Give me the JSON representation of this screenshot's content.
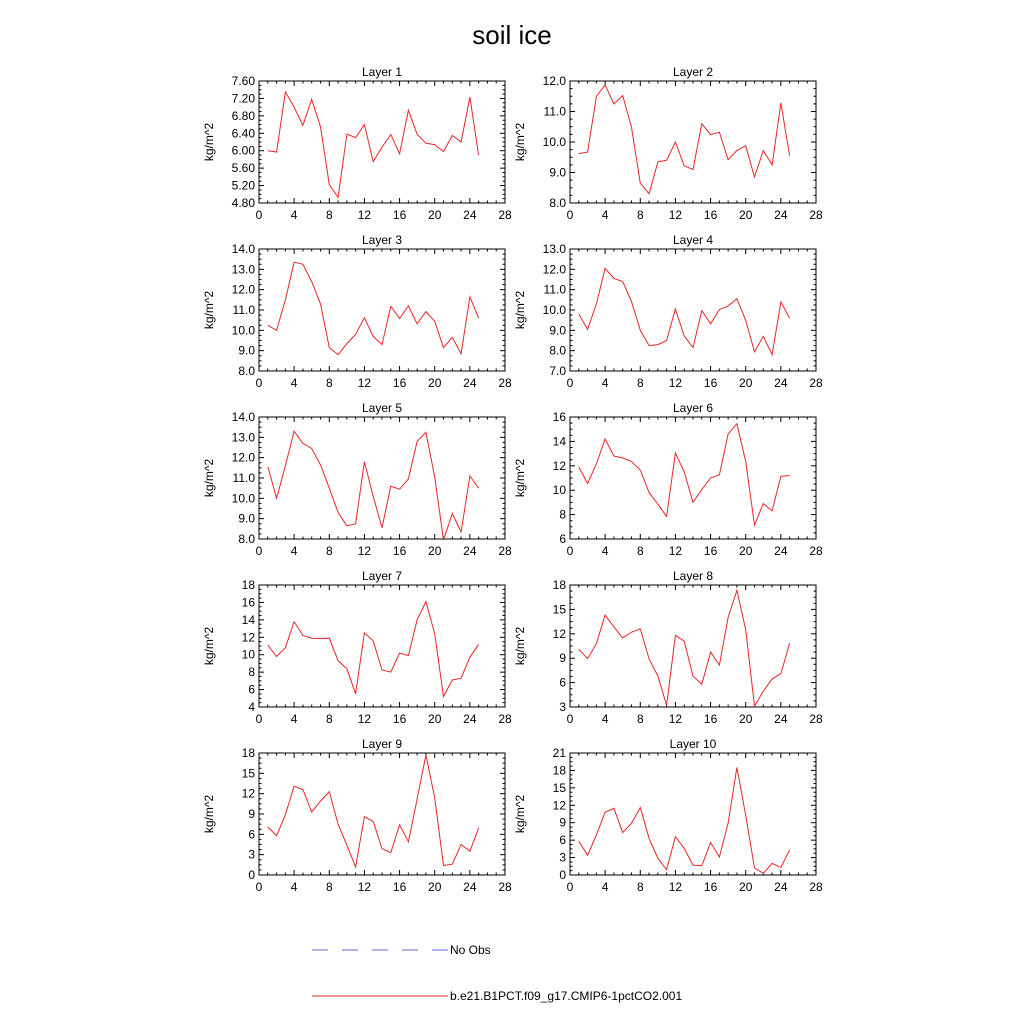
{
  "title": "soil ice",
  "legend": {
    "entries": [
      {
        "label": "No Obs",
        "color": "#6666dd",
        "dashed": true
      },
      {
        "label": "b.e21.B1PCT.f09_g17.CMIP6-1pctCO2.001",
        "color": "#e8252a",
        "dashed": false
      }
    ]
  },
  "chart_data": [
    {
      "type": "line",
      "title": "Layer 1",
      "ylabel": "kg/m^2",
      "xlim": [
        0,
        28
      ],
      "xticks": [
        0,
        4,
        8,
        12,
        16,
        20,
        24,
        28
      ],
      "ylim": [
        4.8,
        7.6
      ],
      "yticks": [
        "4.80",
        "5.20",
        "5.60",
        "6.00",
        "6.40",
        "6.80",
        "7.20",
        "7.60"
      ],
      "ytick_values": [
        4.8,
        5.2,
        5.6,
        6.0,
        6.4,
        6.8,
        7.2,
        7.6
      ],
      "series": [
        {
          "color": "#e8252a",
          "x": [
            1,
            2,
            3,
            4,
            5,
            6,
            7,
            8,
            9,
            10,
            11,
            12,
            13,
            14,
            15,
            16,
            17,
            18,
            19,
            20,
            21,
            22,
            23,
            24,
            25
          ],
          "y": [
            6.0,
            5.97,
            7.35,
            7.0,
            6.58,
            7.18,
            6.55,
            5.22,
            4.93,
            6.38,
            6.3,
            6.6,
            5.75,
            6.08,
            6.37,
            5.93,
            6.93,
            6.38,
            6.17,
            6.14,
            5.98,
            6.35,
            6.2,
            7.23,
            5.9
          ]
        }
      ]
    },
    {
      "type": "line",
      "title": "Layer 2",
      "ylabel": "kg/m^2",
      "xlim": [
        0,
        28
      ],
      "xticks": [
        0,
        4,
        8,
        12,
        16,
        20,
        24,
        28
      ],
      "ylim": [
        8.0,
        12.0
      ],
      "yticks": [
        "8.0",
        "9.0",
        "10.0",
        "11.0",
        "12.0"
      ],
      "ytick_values": [
        8,
        9,
        10,
        11,
        12
      ],
      "series": [
        {
          "color": "#e8252a",
          "x": [
            1,
            2,
            3,
            4,
            5,
            6,
            7,
            8,
            9,
            10,
            11,
            12,
            13,
            14,
            15,
            16,
            17,
            18,
            19,
            20,
            21,
            22,
            23,
            24,
            25
          ],
          "y": [
            9.62,
            9.67,
            11.5,
            11.87,
            11.25,
            11.52,
            10.48,
            8.65,
            8.3,
            9.35,
            9.4,
            10.0,
            9.22,
            9.1,
            10.6,
            10.24,
            10.32,
            9.42,
            9.72,
            9.88,
            8.85,
            9.72,
            9.25,
            11.28,
            9.55
          ]
        }
      ]
    },
    {
      "type": "line",
      "title": "Layer 3",
      "ylabel": "kg/m^2",
      "xlim": [
        0,
        28
      ],
      "xticks": [
        0,
        4,
        8,
        12,
        16,
        20,
        24,
        28
      ],
      "ylim": [
        8.0,
        14.0
      ],
      "yticks": [
        "8.0",
        "9.0",
        "10.0",
        "11.0",
        "12.0",
        "13.0",
        "14.0"
      ],
      "ytick_values": [
        8,
        9,
        10,
        11,
        12,
        13,
        14
      ],
      "series": [
        {
          "color": "#e8252a",
          "x": [
            1,
            2,
            3,
            4,
            5,
            6,
            7,
            8,
            9,
            10,
            11,
            12,
            13,
            14,
            15,
            16,
            17,
            18,
            19,
            20,
            21,
            22,
            23,
            24,
            25
          ],
          "y": [
            10.25,
            10.0,
            11.5,
            13.35,
            13.25,
            12.4,
            11.3,
            9.15,
            8.8,
            9.35,
            9.8,
            10.62,
            9.7,
            9.3,
            11.18,
            10.58,
            11.2,
            10.32,
            10.92,
            10.45,
            9.15,
            9.65,
            8.85,
            11.65,
            10.6
          ]
        }
      ]
    },
    {
      "type": "line",
      "title": "Layer 4",
      "ylabel": "kg/m^2",
      "xlim": [
        0,
        28
      ],
      "xticks": [
        0,
        4,
        8,
        12,
        16,
        20,
        24,
        28
      ],
      "ylim": [
        7.0,
        13.0
      ],
      "yticks": [
        "7.0",
        "8.0",
        "9.0",
        "10.0",
        "11.0",
        "12.0",
        "13.0"
      ],
      "ytick_values": [
        7,
        8,
        9,
        10,
        11,
        12,
        13
      ],
      "series": [
        {
          "color": "#e8252a",
          "x": [
            1,
            2,
            3,
            4,
            5,
            6,
            7,
            8,
            9,
            10,
            11,
            12,
            13,
            14,
            15,
            16,
            17,
            18,
            19,
            20,
            21,
            22,
            23,
            24,
            25
          ],
          "y": [
            9.8,
            9.05,
            10.3,
            12.05,
            11.55,
            11.4,
            10.42,
            9.0,
            8.25,
            8.3,
            8.5,
            10.05,
            8.72,
            8.15,
            9.97,
            9.32,
            10.02,
            10.2,
            10.55,
            9.5,
            7.95,
            8.7,
            7.8,
            10.4,
            9.6
          ]
        }
      ]
    },
    {
      "type": "line",
      "title": "Layer 5",
      "ylabel": "kg/m^2",
      "xlim": [
        0,
        28
      ],
      "xticks": [
        0,
        4,
        8,
        12,
        16,
        20,
        24,
        28
      ],
      "ylim": [
        8.0,
        14.0
      ],
      "yticks": [
        "8.0",
        "9.0",
        "10.0",
        "11.0",
        "12.0",
        "13.0",
        "14.0"
      ],
      "ytick_values": [
        8,
        9,
        10,
        11,
        12,
        13,
        14
      ],
      "series": [
        {
          "color": "#e8252a",
          "x": [
            1,
            2,
            3,
            4,
            5,
            6,
            7,
            8,
            9,
            10,
            11,
            12,
            13,
            14,
            15,
            16,
            17,
            18,
            19,
            20,
            21,
            22,
            23,
            24,
            25
          ],
          "y": [
            11.55,
            10.0,
            11.6,
            13.3,
            12.7,
            12.45,
            11.65,
            10.5,
            9.3,
            8.65,
            8.75,
            11.8,
            10.1,
            8.55,
            10.6,
            10.45,
            10.95,
            12.8,
            13.25,
            11.05,
            7.95,
            9.25,
            8.35,
            11.1,
            10.5
          ]
        }
      ]
    },
    {
      "type": "line",
      "title": "Layer 6",
      "ylabel": "kg/m^2",
      "xlim": [
        0,
        28
      ],
      "xticks": [
        0,
        4,
        8,
        12,
        16,
        20,
        24,
        28
      ],
      "ylim": [
        6,
        16
      ],
      "yticks": [
        "6",
        "8",
        "10",
        "12",
        "14",
        "16"
      ],
      "ytick_values": [
        6,
        8,
        10,
        12,
        14,
        16
      ],
      "series": [
        {
          "color": "#e8252a",
          "x": [
            1,
            2,
            3,
            4,
            5,
            6,
            7,
            8,
            9,
            10,
            11,
            12,
            13,
            14,
            15,
            16,
            17,
            18,
            19,
            20,
            21,
            22,
            23,
            24,
            25
          ],
          "y": [
            11.9,
            10.55,
            12.15,
            14.2,
            12.8,
            12.65,
            12.35,
            11.65,
            9.8,
            8.85,
            7.85,
            13.05,
            11.5,
            9.0,
            10.05,
            11.0,
            11.25,
            14.6,
            15.45,
            12.35,
            7.15,
            8.9,
            8.3,
            11.15,
            11.2
          ]
        }
      ]
    },
    {
      "type": "line",
      "title": "Layer 7",
      "ylabel": "kg/m^2",
      "xlim": [
        0,
        28
      ],
      "xticks": [
        0,
        4,
        8,
        12,
        16,
        20,
        24,
        28
      ],
      "ylim": [
        4,
        18
      ],
      "yticks": [
        "4",
        "6",
        "8",
        "10",
        "12",
        "14",
        "16",
        "18"
      ],
      "ytick_values": [
        4,
        6,
        8,
        10,
        12,
        14,
        16,
        18
      ],
      "series": [
        {
          "color": "#e8252a",
          "x": [
            1,
            2,
            3,
            4,
            5,
            6,
            7,
            8,
            9,
            10,
            11,
            12,
            13,
            14,
            15,
            16,
            17,
            18,
            19,
            20,
            21,
            22,
            23,
            24,
            25
          ],
          "y": [
            11.1,
            9.8,
            10.8,
            13.8,
            12.2,
            11.9,
            11.85,
            11.9,
            9.3,
            8.4,
            5.5,
            12.5,
            11.6,
            8.25,
            8.0,
            10.2,
            9.9,
            14.0,
            16.1,
            12.4,
            5.2,
            7.1,
            7.3,
            9.7,
            11.2
          ]
        }
      ]
    },
    {
      "type": "line",
      "title": "Layer 8",
      "ylabel": "kg/m^2",
      "xlim": [
        0,
        28
      ],
      "xticks": [
        0,
        4,
        8,
        12,
        16,
        20,
        24,
        28
      ],
      "ylim": [
        3,
        18
      ],
      "yticks": [
        "3",
        "6",
        "9",
        "12",
        "15",
        "18"
      ],
      "ytick_values": [
        3,
        6,
        9,
        12,
        15,
        18
      ],
      "series": [
        {
          "color": "#e8252a",
          "x": [
            1,
            2,
            3,
            4,
            5,
            6,
            7,
            8,
            9,
            10,
            11,
            12,
            13,
            14,
            15,
            16,
            17,
            18,
            19,
            20,
            21,
            22,
            23,
            24,
            25
          ],
          "y": [
            10.1,
            8.95,
            10.8,
            14.3,
            12.85,
            11.5,
            12.2,
            12.6,
            8.9,
            6.8,
            3.2,
            11.8,
            11.1,
            6.8,
            5.8,
            9.75,
            8.15,
            14.0,
            17.35,
            12.5,
            3.1,
            4.95,
            6.45,
            7.1,
            10.85
          ]
        }
      ]
    },
    {
      "type": "line",
      "title": "Layer 9",
      "ylabel": "kg/m^2",
      "xlim": [
        0,
        28
      ],
      "xticks": [
        0,
        4,
        8,
        12,
        16,
        20,
        24,
        28
      ],
      "ylim": [
        0,
        18
      ],
      "yticks": [
        "0",
        "3",
        "6",
        "9",
        "12",
        "15",
        "18"
      ],
      "ytick_values": [
        0,
        3,
        6,
        9,
        12,
        15,
        18
      ],
      "series": [
        {
          "color": "#e8252a",
          "x": [
            1,
            2,
            3,
            4,
            5,
            6,
            7,
            8,
            9,
            10,
            11,
            12,
            13,
            14,
            15,
            16,
            17,
            18,
            19,
            20,
            21,
            22,
            23,
            24,
            25
          ],
          "y": [
            7.1,
            5.8,
            8.9,
            13.1,
            12.6,
            9.3,
            10.9,
            12.3,
            7.5,
            4.4,
            1.2,
            8.6,
            7.9,
            3.9,
            3.3,
            7.4,
            4.9,
            11.2,
            17.7,
            11.4,
            1.4,
            1.6,
            4.5,
            3.5,
            6.9
          ]
        }
      ]
    },
    {
      "type": "line",
      "title": "Layer 10",
      "ylabel": "kg/m^2",
      "xlim": [
        0,
        28
      ],
      "xticks": [
        0,
        4,
        8,
        12,
        16,
        20,
        24,
        28
      ],
      "ylim": [
        0,
        21
      ],
      "yticks": [
        "0",
        "3",
        "6",
        "9",
        "12",
        "15",
        "18",
        "21"
      ],
      "ytick_values": [
        0,
        3,
        6,
        9,
        12,
        15,
        18,
        21
      ],
      "series": [
        {
          "color": "#e8252a",
          "x": [
            1,
            2,
            3,
            4,
            5,
            6,
            7,
            8,
            9,
            10,
            11,
            12,
            13,
            14,
            15,
            16,
            17,
            18,
            19,
            20,
            21,
            22,
            23,
            24,
            25
          ],
          "y": [
            5.8,
            3.4,
            6.9,
            10.8,
            11.5,
            7.3,
            8.9,
            11.6,
            6.3,
            2.9,
            0.9,
            6.6,
            4.6,
            1.7,
            1.6,
            5.6,
            3.1,
            8.9,
            18.5,
            10.3,
            1.2,
            0.3,
            2.0,
            1.3,
            4.3
          ]
        }
      ]
    }
  ]
}
